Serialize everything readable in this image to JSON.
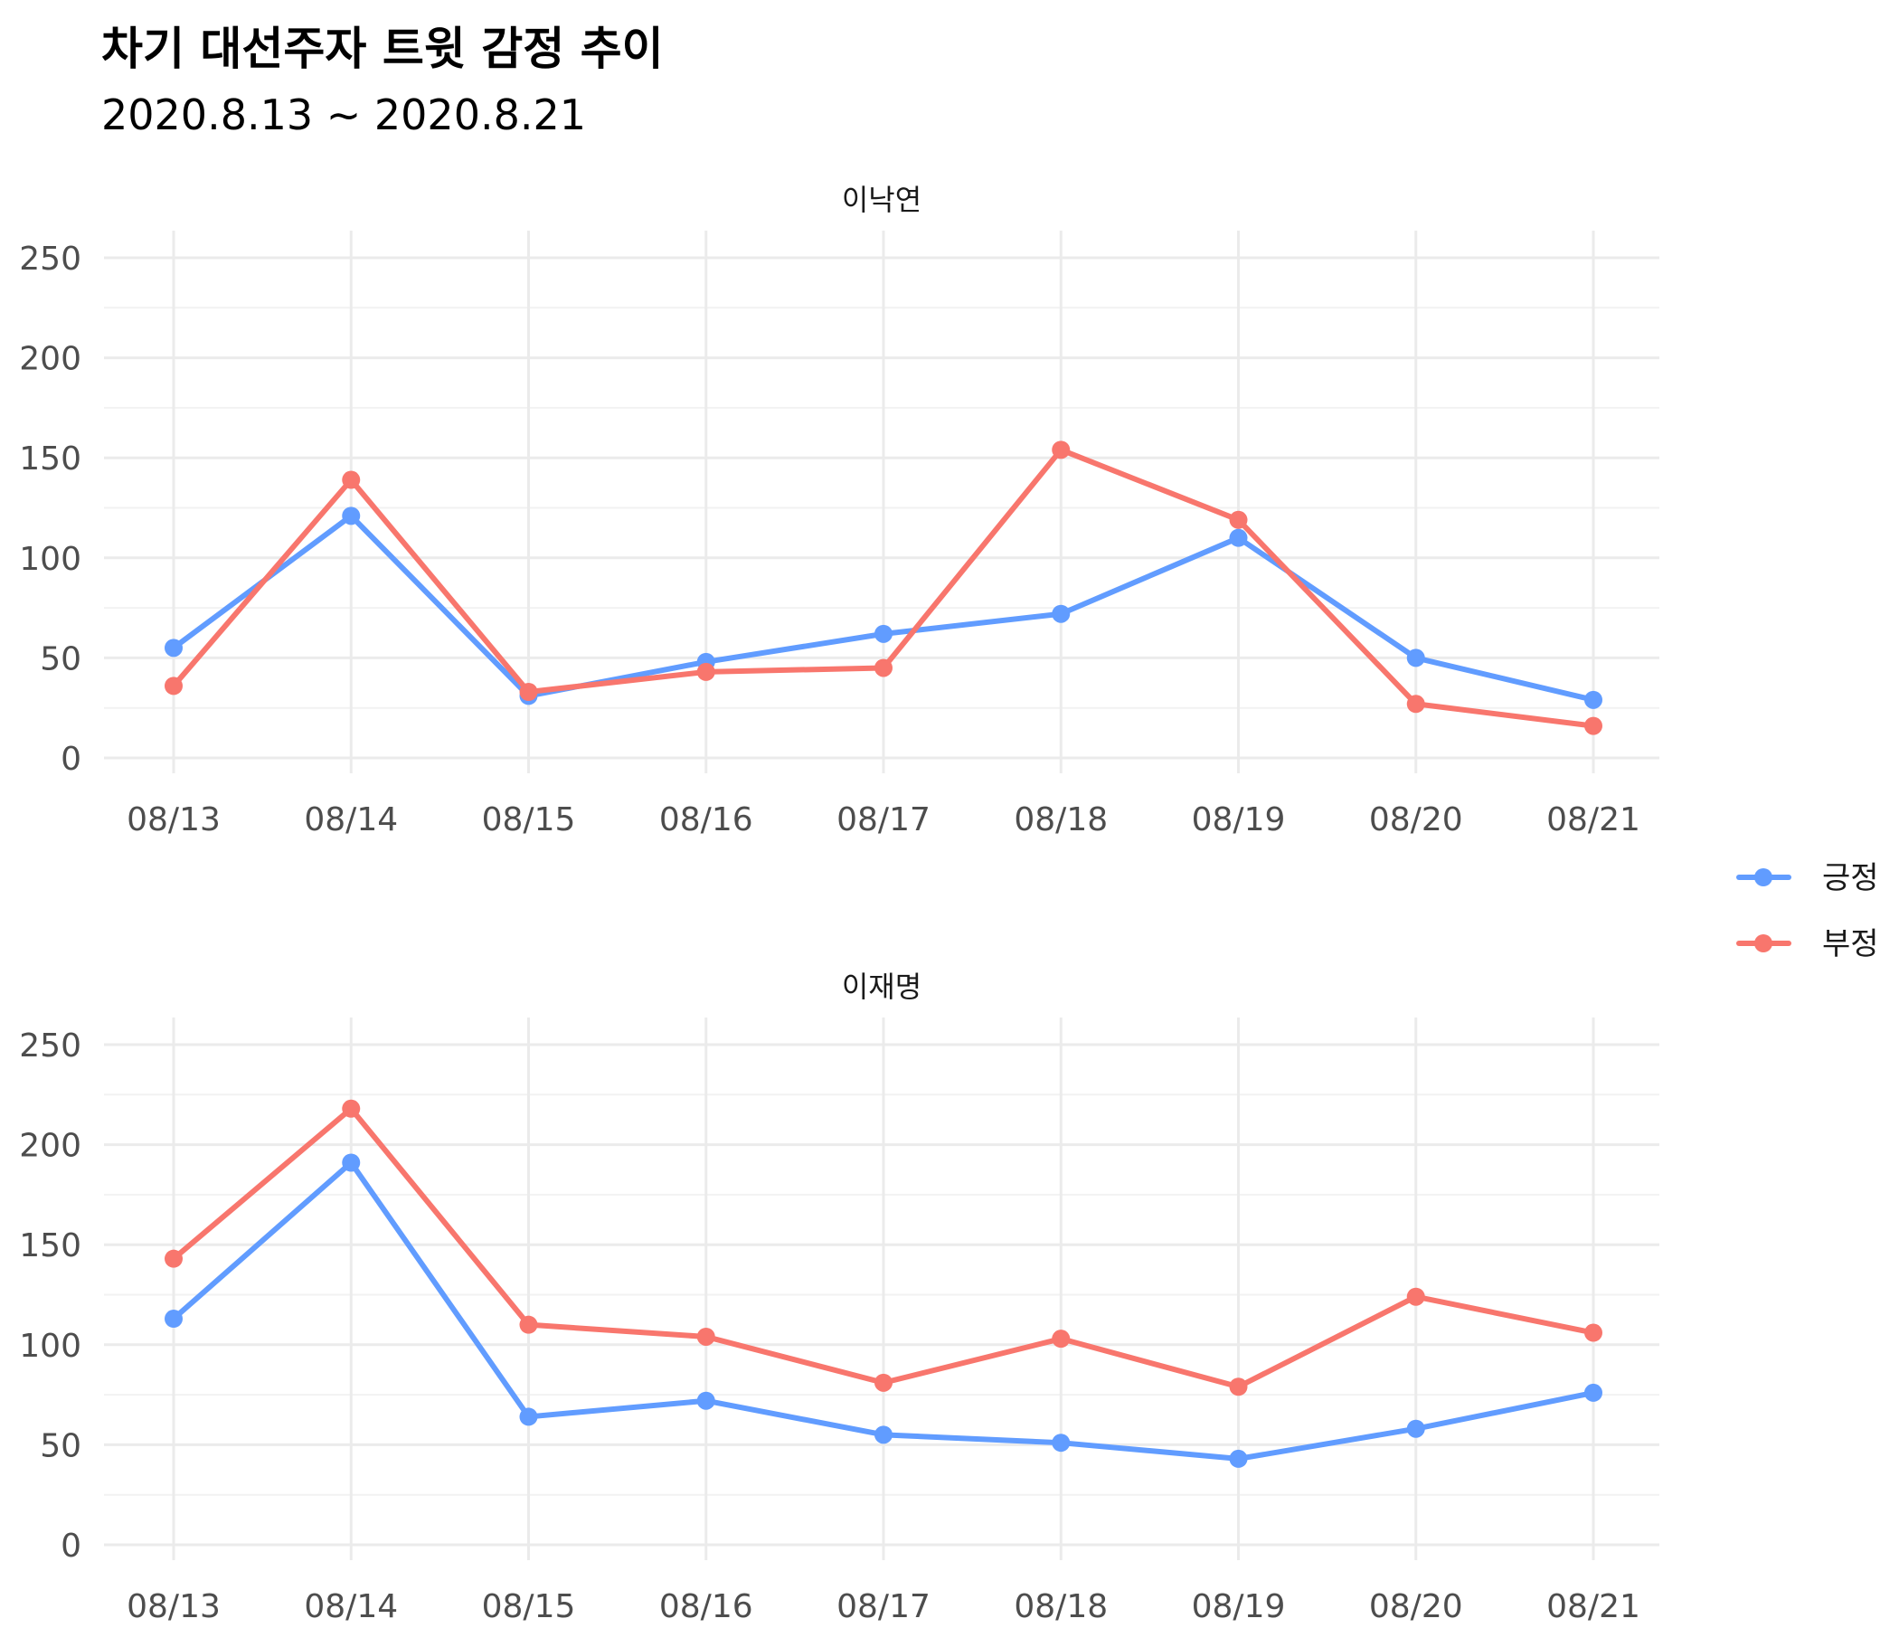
{
  "chart_data": {
    "type": "line",
    "title": "차기 대선주자 트윗 감정 추이",
    "subtitle": "2020.8.13 ~ 2020.8.21",
    "categories": [
      "08/13",
      "08/14",
      "08/15",
      "08/16",
      "08/17",
      "08/18",
      "08/19",
      "08/20",
      "08/21"
    ],
    "ylim": [
      0,
      260
    ],
    "yticks": [
      0,
      50,
      100,
      150,
      200,
      250
    ],
    "grid": true,
    "legend": {
      "placement": "right",
      "entries": [
        {
          "name": "긍정",
          "color": "#619CFF"
        },
        {
          "name": "부정",
          "color": "#F8766D"
        }
      ]
    },
    "panels": [
      {
        "label": "이낙연",
        "series": [
          {
            "name": "긍정",
            "color": "#619CFF",
            "values": [
              55,
              121,
              31,
              48,
              62,
              72,
              110,
              50,
              29
            ]
          },
          {
            "name": "부정",
            "color": "#F8766D",
            "values": [
              36,
              139,
              33,
              43,
              45,
              154,
              119,
              27,
              16
            ]
          }
        ]
      },
      {
        "label": "이재명",
        "series": [
          {
            "name": "긍정",
            "color": "#619CFF",
            "values": [
              113,
              191,
              64,
              72,
              55,
              51,
              43,
              58,
              76
            ]
          },
          {
            "name": "부정",
            "color": "#F8766D",
            "values": [
              143,
              218,
              110,
              104,
              81,
              103,
              79,
              124,
              106
            ]
          }
        ]
      }
    ]
  }
}
